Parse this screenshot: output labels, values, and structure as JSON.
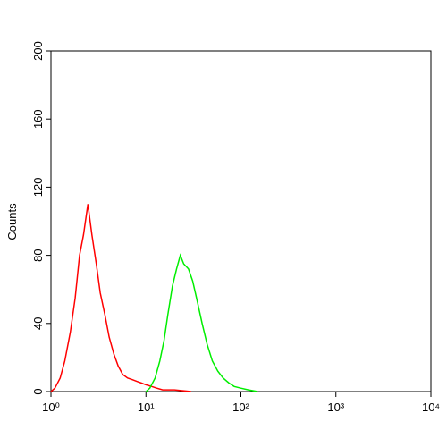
{
  "chart_data": {
    "type": "line",
    "ylabel": "Counts",
    "xscale": "log",
    "xlim": [
      1,
      10000
    ],
    "ylim": [
      0,
      200
    ],
    "xticks": [
      {
        "value": 1,
        "label": "10⁰"
      },
      {
        "value": 10,
        "label": "10¹"
      },
      {
        "value": 100,
        "label": "10²"
      },
      {
        "value": 1000,
        "label": "10³"
      },
      {
        "value": 10000,
        "label": "10⁴"
      }
    ],
    "yticks": [
      0,
      40,
      80,
      120,
      160,
      200
    ],
    "series": [
      {
        "color": "#ff0000",
        "x": [
          1.0,
          1.1,
          1.25,
          1.4,
          1.6,
          1.8,
          2.0,
          2.2,
          2.45,
          2.7,
          3.0,
          3.3,
          3.7,
          4.1,
          4.6,
          5.1,
          5.7,
          6.4,
          7.2,
          8,
          9,
          10,
          11.5,
          13,
          15,
          20,
          30
        ],
        "values": [
          0,
          2,
          8,
          18,
          35,
          55,
          80,
          92,
          110,
          92,
          75,
          58,
          45,
          32,
          22,
          15,
          10,
          8,
          7,
          6,
          5,
          4,
          3,
          2,
          1,
          1,
          0
        ]
      },
      {
        "color": "#00ee00",
        "x": [
          10,
          11,
          12.5,
          14,
          15.5,
          17,
          19,
          21,
          23,
          25,
          28,
          31,
          35,
          39,
          44,
          50,
          57,
          65,
          75,
          85,
          100,
          120,
          150
        ],
        "values": [
          0,
          2,
          8,
          18,
          30,
          45,
          62,
          72,
          80,
          75,
          72,
          65,
          52,
          40,
          28,
          18,
          12,
          8,
          5,
          3,
          2,
          1,
          0
        ]
      }
    ]
  }
}
